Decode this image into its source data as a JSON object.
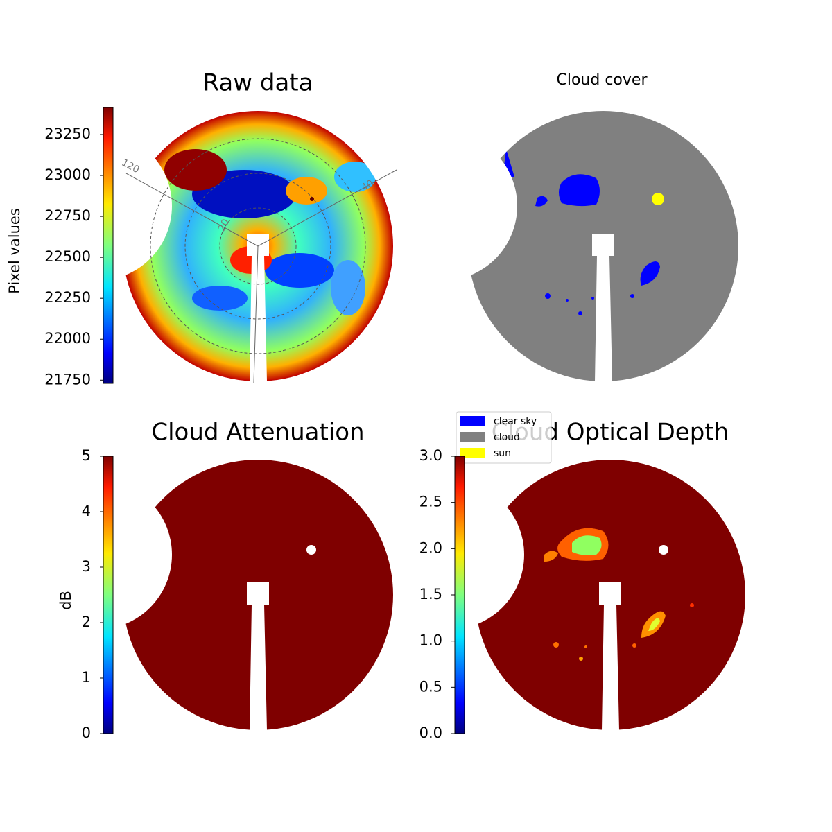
{
  "chart_data": [
    {
      "type": "image",
      "title": "Raw data",
      "colormap": "jet",
      "colorbar": {
        "label": "Pixel values",
        "lim": [
          21730,
          23415
        ],
        "ticks": [
          21750,
          22000,
          22250,
          22500,
          22750,
          23000,
          23250
        ]
      },
      "annotations": [
        "120",
        "20",
        "40"
      ]
    },
    {
      "type": "image",
      "title": "Cloud cover",
      "legend": {
        "labels": [
          "clear sky",
          "cloud",
          "sun"
        ],
        "colors": [
          "#0000ff",
          "#808080",
          "#ffff00"
        ]
      }
    },
    {
      "type": "image",
      "title": "Cloud Attenuation",
      "colormap": "jet",
      "colorbar": {
        "label": "dB",
        "lim": [
          0,
          5
        ],
        "ticks": [
          0,
          1,
          2,
          3,
          4,
          5
        ]
      }
    },
    {
      "type": "image",
      "title": "Cloud Optical Depth",
      "colormap": "jet",
      "colorbar": {
        "lim": [
          0,
          3
        ],
        "ticks": [
          {
            "value": 0,
            "label": "0.0"
          },
          0.5,
          {
            "value": 1,
            "label": "1.0"
          },
          1.5,
          {
            "value": 2,
            "label": "2.0"
          },
          2.5,
          {
            "value": 3,
            "label": "3.0"
          }
        ]
      }
    }
  ]
}
